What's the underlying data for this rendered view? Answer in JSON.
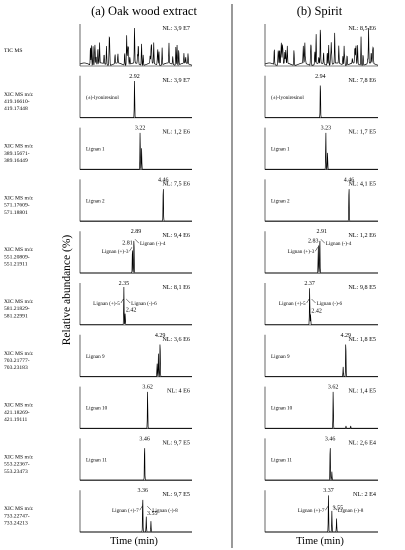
{
  "chart_data": {
    "type": "line",
    "ylabel": "Relative abundance (%)",
    "xlabel": "Time (min)",
    "columns": [
      {
        "title": "(a) Oak wood extract",
        "panels": [
          {
            "nl": "NL: 3,9 E7",
            "peaks": [],
            "tic": true
          },
          {
            "nl": "NL: 3,9 E7",
            "label": "(±)-lyoniresinol",
            "peaks": [
              {
                "x": 2.92,
                "h": 1.0,
                "label": "2.92"
              }
            ]
          },
          {
            "nl": "NL: 1,2 E6",
            "label": "Lignan 1",
            "peaks": [
              {
                "x": 3.22,
                "h": 1.0,
                "label": "3.22"
              },
              {
                "x": 3.3,
                "h": 0.55
              }
            ]
          },
          {
            "nl": "NL: 7,5 E6",
            "label": "Lignan 2",
            "peaks": [
              {
                "x": 4.46,
                "h": 1.0,
                "label": "4.46"
              }
            ]
          },
          {
            "nl": "NL: 9,4 E6",
            "peaks": [
              {
                "x": 2.81,
                "h": 0.7,
                "label": "2.81"
              },
              {
                "x": 2.89,
                "h": 1.0,
                "label": "2.89"
              }
            ],
            "annotations": [
              {
                "text": "Lignan (+)-3"
              },
              {
                "text": "Lignan (-)-4"
              }
            ]
          },
          {
            "nl": "NL: 8,1 E6",
            "peaks": [
              {
                "x": 2.35,
                "h": 1.0,
                "label": "2.35"
              },
              {
                "x": 2.42,
                "h": 0.3,
                "label": "2.42"
              }
            ],
            "annotations": [
              {
                "text": "Lignan (+)-5"
              },
              {
                "text": "Lignan (-)-6"
              }
            ]
          },
          {
            "nl": "NL: 3,6 E6",
            "label": "Lignan 9",
            "peaks": [
              {
                "x": 4.29,
                "h": 1.0,
                "label": "4.29"
              },
              {
                "x": 4.13,
                "h": 0.35
              },
              {
                "x": 4.2,
                "h": 0.6
              }
            ]
          },
          {
            "nl": "NL: 4 E6",
            "label": "Lignan 10",
            "peaks": [
              {
                "x": 3.62,
                "h": 1.0,
                "label": "3.62"
              }
            ]
          },
          {
            "nl": "NL: 9,7 E5",
            "label": "Lignan 11",
            "peaks": [
              {
                "x": 3.46,
                "h": 1.0,
                "label": "3.46"
              }
            ]
          },
          {
            "nl": "NL: 9,7 E5",
            "peaks": [
              {
                "x": 3.36,
                "h": 1.0,
                "label": "3.36"
              },
              {
                "x": 3.55,
                "h": 0.4,
                "label": "3.55"
              },
              {
                "x": 3.8,
                "h": 0.28
              }
            ],
            "annotations": [
              {
                "text": "Lignan (+)-7"
              },
              {
                "text": "Lignan (-)-8"
              }
            ]
          }
        ]
      },
      {
        "title": "(b) Spirit",
        "panels": [
          {
            "nl": "NL: 8,5 E6",
            "peaks": [],
            "tic": true
          },
          {
            "nl": "NL: 7,8 E6",
            "label": "(±)-lyoniresinol",
            "peaks": [
              {
                "x": 2.94,
                "h": 1.0,
                "label": "2.94"
              }
            ]
          },
          {
            "nl": "NL: 1,7 E5",
            "label": "Lignan 1",
            "peaks": [
              {
                "x": 3.23,
                "h": 1.0,
                "label": "3.23"
              },
              {
                "x": 3.32,
                "h": 0.45
              }
            ]
          },
          {
            "nl": "NL: 4,1 E5",
            "label": "Lignan 2",
            "peaks": [
              {
                "x": 4.46,
                "h": 1.0,
                "label": "4.46"
              }
            ]
          },
          {
            "nl": "NL: 1,2 E6",
            "peaks": [
              {
                "x": 2.83,
                "h": 0.75,
                "label": "2.83"
              },
              {
                "x": 2.91,
                "h": 1.0,
                "label": "2.91"
              }
            ],
            "annotations": [
              {
                "text": "Lignan (+)-3"
              },
              {
                "text": "Lignan (-)-4"
              }
            ]
          },
          {
            "nl": "NL: 9,8 E5",
            "peaks": [
              {
                "x": 2.37,
                "h": 1.0,
                "label": "2.37"
              },
              {
                "x": 2.42,
                "h": 0.28,
                "label": "2.42"
              }
            ],
            "annotations": [
              {
                "text": "Lignan (+)-5"
              },
              {
                "text": "Lignan (-)-6"
              }
            ]
          },
          {
            "nl": "NL: 1,8 E5",
            "label": "Lignan 9",
            "peaks": [
              {
                "x": 4.29,
                "h": 1.0,
                "label": "4.29"
              },
              {
                "x": 4.15,
                "h": 0.25
              }
            ]
          },
          {
            "nl": "NL: 1,4 E5",
            "label": "Lignan 10",
            "peaks": [
              {
                "x": 3.62,
                "h": 1.0,
                "label": "3.62"
              },
              {
                "x": 4.3,
                "h": 0.06
              },
              {
                "x": 4.55,
                "h": 0.06
              }
            ]
          },
          {
            "nl": "NL: 2,6 E4",
            "label": "Lignan 11",
            "peaks": [
              {
                "x": 3.46,
                "h": 1.0,
                "label": "3.46"
              },
              {
                "x": 3.55,
                "h": 0.22
              }
            ]
          },
          {
            "nl": "NL: 2 E4",
            "peaks": [
              {
                "x": 3.37,
                "h": 1.0,
                "label": "3.37"
              },
              {
                "x": 3.55,
                "h": 0.55,
                "label": "3.55"
              },
              {
                "x": 3.8,
                "h": 0.35
              }
            ],
            "annotations": [
              {
                "text": "Lignan (+)-7"
              },
              {
                "text": "Lignan (-)-8"
              }
            ]
          }
        ]
      }
    ],
    "row_labels": [
      "TIC MS",
      "XIC MS m/z 419.16610-419.17448",
      "XIC MS m/z 389.15671-389.16449",
      "XIC MS m/z 571.17609-571.18801",
      "XIC MS m/z 551.20809-551.21911",
      "XIC MS m/z 581.21829-581.22991",
      "XIC MS m/z 703.21777-703.23183",
      "XIC MS m/z 421.18269-421.19111",
      "XIC MS m/z 553.22367-553.23473",
      "XIC MS m/z 733.22747-733.24213"
    ]
  }
}
